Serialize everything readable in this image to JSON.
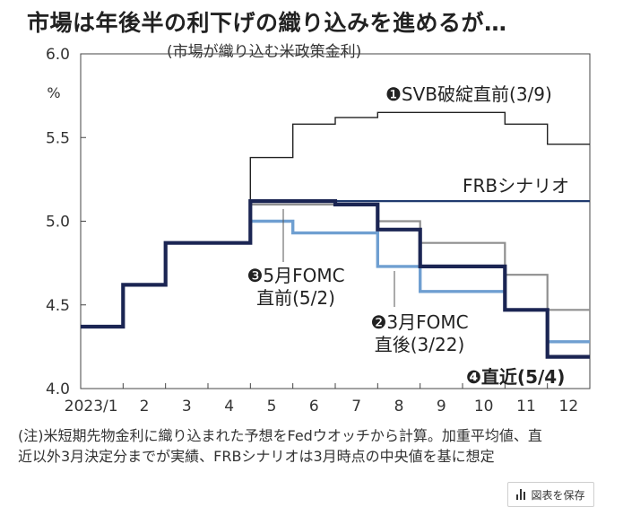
{
  "chart_data": {
    "type": "line",
    "title": "市場は年後半の利下げの織り込みを進めるが…",
    "subtitle": "(市場が織り込む米政策金利)",
    "ylabel": "%",
    "ylim": [
      4.0,
      6.0
    ],
    "y_ticks": [
      "4.0",
      "4.5",
      "5.0",
      "5.5",
      "6.0"
    ],
    "categories": [
      "2023/1",
      "2",
      "3",
      "4",
      "5",
      "6",
      "7",
      "8",
      "9",
      "10",
      "11",
      "12"
    ],
    "grid": false,
    "series": [
      {
        "name": "SVB破綻直前(3/9)",
        "marker": "❶",
        "color": "#222222",
        "width": 1.4,
        "values": [
          4.37,
          4.62,
          4.87,
          4.87,
          5.38,
          5.58,
          5.62,
          5.65,
          5.65,
          5.65,
          5.58,
          5.46
        ]
      },
      {
        "name": "FRBシナリオ",
        "marker": "",
        "color": "#1f3a6e",
        "width": 2.2,
        "values": [
          null,
          null,
          null,
          null,
          5.12,
          5.12,
          5.12,
          5.12,
          5.12,
          5.12,
          5.12,
          5.12
        ]
      },
      {
        "name": "3月FOMC直後(3/22)",
        "marker": "❷",
        "color": "#8f8f8f",
        "width": 2.2,
        "values": [
          4.37,
          4.62,
          4.87,
          4.87,
          5.1,
          5.1,
          5.1,
          5.0,
          4.87,
          4.87,
          4.68,
          4.47
        ]
      },
      {
        "name": "5月FOMC直前(5/2)",
        "marker": "❸",
        "color": "#6f9fd1",
        "width": 3.4,
        "values": [
          4.37,
          4.62,
          4.87,
          4.87,
          5.0,
          4.93,
          4.93,
          4.73,
          4.58,
          4.58,
          4.47,
          4.28
        ]
      },
      {
        "name": "直近(5/4)",
        "marker": "❹",
        "color": "#1b2553",
        "width": 4.2,
        "values": [
          4.37,
          4.62,
          4.87,
          4.87,
          5.12,
          5.12,
          5.1,
          4.95,
          4.73,
          4.73,
          4.47,
          4.19
        ]
      }
    ],
    "labels": [
      {
        "series": 0,
        "lines": [
          "❶SVB破綻直前(3/9)"
        ]
      },
      {
        "series": 1,
        "lines": [
          "FRBシナリオ"
        ]
      },
      {
        "series": 3,
        "lines": [
          "❸5月FOMC",
          "直前(5/2)"
        ]
      },
      {
        "series": 2,
        "lines": [
          "❷3月FOMC",
          "直後(3/22)"
        ]
      },
      {
        "series": 4,
        "lines": [
          "❹直近(5/4)"
        ]
      }
    ]
  },
  "note": {
    "line1": "(注)米短期先物金利に織り込まれた予想をFedウオッチから計算。加重平均値、直",
    "line2": "近以外3月決定分までが実績、FRBシナリオは3月時点の中央値を基に想定"
  },
  "save_button": {
    "label": "図表を保存",
    "icon": "bar-chart-icon"
  }
}
